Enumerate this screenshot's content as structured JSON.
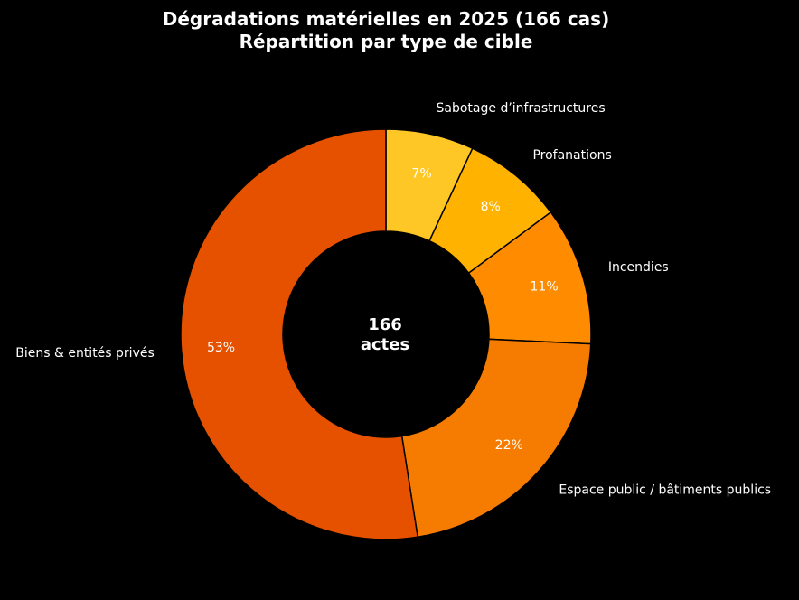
{
  "chart_data": {
    "type": "pie",
    "subtype": "donut",
    "title": "Dégradations matérielles en 2025 (166 cas)",
    "subtitle": "Répartition par type de cible",
    "center_label": {
      "line1": "166",
      "line2": "actes"
    },
    "slices": [
      {
        "label": "Sabotage d’infrastructures",
        "value": 7,
        "pct_label": "7%",
        "color": "#FFC726"
      },
      {
        "label": "Profanations",
        "value": 8,
        "pct_label": "8%",
        "color": "#FFB300"
      },
      {
        "label": "Incendies",
        "value": 11,
        "pct_label": "11%",
        "color": "#FF8C00"
      },
      {
        "label": "Espace public / bâtiments publics",
        "value": 22,
        "pct_label": "22%",
        "color": "#F57C00"
      },
      {
        "label": "Biens & entités privés",
        "value": 53,
        "pct_label": "53%",
        "color": "#E65100"
      }
    ],
    "start_angle": "top",
    "direction": "clockwise",
    "edge_color": "#000000",
    "background": "#000000"
  }
}
